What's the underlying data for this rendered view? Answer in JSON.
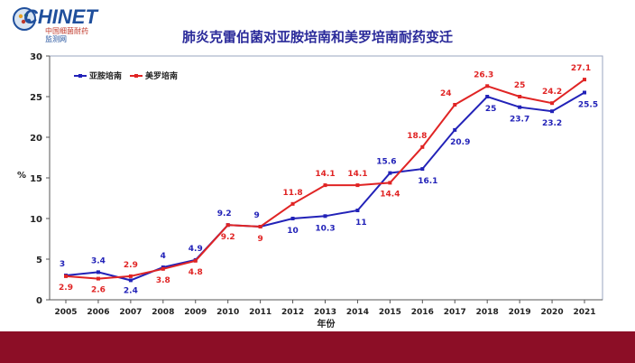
{
  "logo": {
    "word": "CHINET",
    "line1": "中国细菌耐药",
    "line2": "监测网"
  },
  "chart_data": {
    "type": "line",
    "title": "肺炎克雷伯菌对亚胺培南和美罗培南耐药变迁",
    "xlabel": "年份",
    "ylabel": "%",
    "ylim": [
      0,
      30
    ],
    "yticks": [
      0,
      5,
      10,
      15,
      20,
      25,
      30
    ],
    "grid": false,
    "legend_position": "top-left",
    "x": [
      "2005",
      "2006",
      "2007",
      "2008",
      "2009",
      "2010",
      "2011",
      "2012",
      "2013",
      "2014",
      "2015",
      "2016",
      "2017",
      "2018",
      "2019",
      "2020",
      "2021"
    ],
    "series": [
      {
        "name": "亚胺培南",
        "color": "#2222b8",
        "values": [
          3,
          3.4,
          2.4,
          4,
          4.9,
          9.2,
          9,
          10,
          10.3,
          11,
          15.6,
          16.1,
          20.9,
          25,
          23.7,
          23.2,
          25.5
        ]
      },
      {
        "name": "美罗培南",
        "color": "#e02424",
        "values": [
          2.9,
          2.6,
          2.9,
          3.8,
          4.8,
          9.2,
          9,
          11.8,
          14.1,
          14.1,
          14.4,
          18.8,
          24,
          26.3,
          25,
          24.2,
          27.1
        ]
      }
    ]
  },
  "colors": {
    "footer": "#8c0e26",
    "title": "#2a2a9a"
  }
}
